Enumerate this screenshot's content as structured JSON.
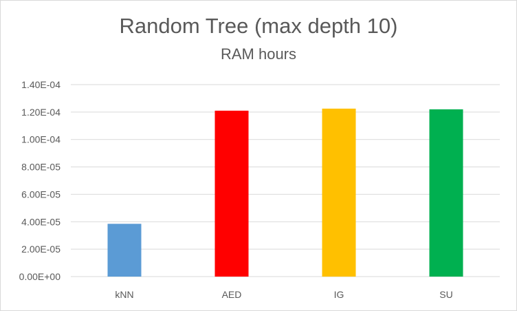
{
  "chart_data": {
    "type": "bar",
    "title": "Random Tree (max depth 10)",
    "subtitle": "RAM hours",
    "categories": [
      "kNN",
      "AED",
      "IG",
      "SU"
    ],
    "values": [
      3.85e-05,
      0.000121,
      0.0001225,
      0.000122
    ],
    "colors": [
      "#5b9bd5",
      "#ff0000",
      "#ffc000",
      "#00b050"
    ],
    "ylim": [
      0,
      0.00014
    ],
    "yticks": [
      0,
      2e-05,
      4e-05,
      6e-05,
      8e-05,
      0.0001,
      0.00012,
      0.00014
    ],
    "ytick_labels": [
      "0.00E+00",
      "2.00E-05",
      "4.00E-05",
      "6.00E-05",
      "8.00E-05",
      "1.00E-04",
      "1.20E-04",
      "1.40E-04"
    ],
    "grid": true,
    "gridline_color": "#d9d9d9",
    "legend": "none"
  }
}
